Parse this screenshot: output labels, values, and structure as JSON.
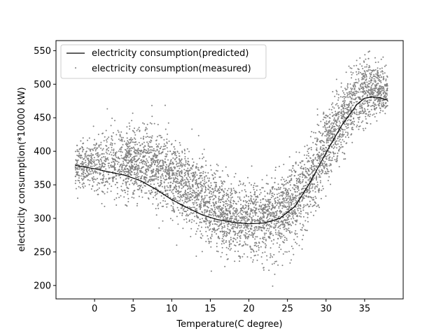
{
  "chart_data": {
    "type": "scatter",
    "title": "",
    "xlabel": "Temperature(C degree)",
    "ylabel": "electricity consumption(*10000 kW)",
    "xlim": [
      -5,
      40
    ],
    "ylim": [
      180,
      565
    ],
    "xticks": [
      0,
      5,
      10,
      15,
      20,
      25,
      30,
      35
    ],
    "yticks": [
      200,
      250,
      300,
      350,
      400,
      450,
      500,
      550
    ],
    "grid": false,
    "legend_position": "top-left",
    "series": [
      {
        "name": "electricity consumption(predicted)",
        "kind": "line",
        "color": "#000000",
        "x": [
          -2.5,
          0,
          2,
          4,
          6,
          8,
          10,
          12,
          14,
          16,
          18,
          20,
          22,
          24,
          26,
          28,
          30,
          32,
          34,
          35,
          36,
          37,
          38
        ],
        "y": [
          379,
          374,
          369,
          364,
          356,
          343,
          328,
          316,
          305,
          298,
          294,
          292,
          293,
          300,
          318,
          355,
          398,
          438,
          470,
          479,
          481,
          480,
          476
        ]
      },
      {
        "name": "electricity consumption(measured)",
        "kind": "scatter",
        "color": "#808080",
        "x_range": [
          -2.5,
          38
        ],
        "y_range": [
          199,
          549
        ],
        "trend_x": [
          -2,
          0,
          2,
          4,
          6,
          8,
          10,
          12,
          14,
          16,
          18,
          20,
          22,
          24,
          26,
          28,
          30,
          32,
          34,
          36,
          38
        ],
        "trend_y": [
          380,
          378,
          380,
          385,
          383,
          375,
          362,
          345,
          325,
          310,
          300,
          298,
          300,
          308,
          325,
          360,
          405,
          445,
          478,
          495,
          490
        ],
        "spread": [
          22,
          28,
          32,
          34,
          36,
          37,
          38,
          38,
          38,
          37,
          36,
          35,
          35,
          36,
          38,
          38,
          38,
          36,
          32,
          28,
          22
        ]
      }
    ]
  }
}
